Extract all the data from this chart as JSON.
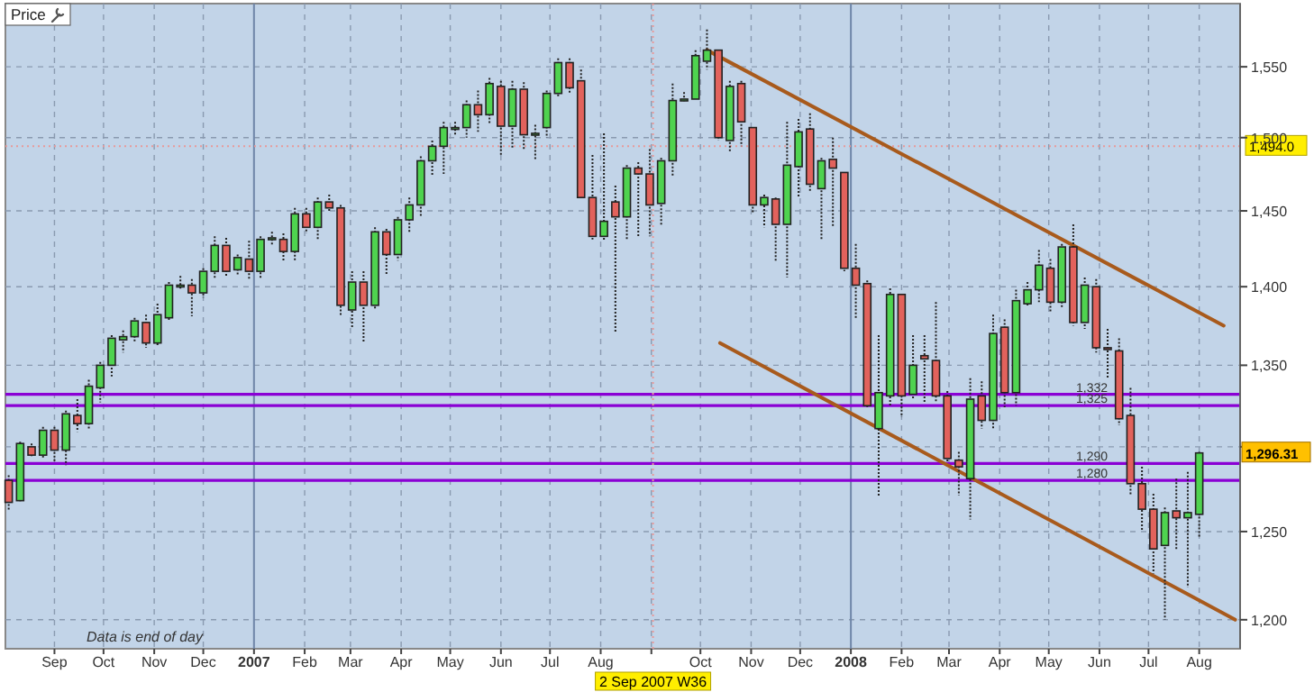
{
  "chart_data": {
    "type": "candlestick",
    "ylabel": "Price",
    "log": true,
    "grid": true,
    "ylim": [
      1184,
      1596
    ],
    "yticks": [
      {
        "value": 1200,
        "label": "1,200"
      },
      {
        "value": 1250,
        "label": "1,250"
      },
      {
        "value": 1300,
        "label": null
      },
      {
        "value": 1350,
        "label": "1,350"
      },
      {
        "value": 1400,
        "label": "1,400"
      },
      {
        "value": 1450,
        "label": "1,450"
      },
      {
        "value": 1500,
        "label": "1,500"
      },
      {
        "value": 1550,
        "label": "1,550"
      }
    ],
    "xlim": [
      "2006-08-02",
      "2008-08-26"
    ],
    "xticks": [
      {
        "value": "2006-09-01",
        "label": "Sep"
      },
      {
        "value": "2006-10-01",
        "label": "Oct"
      },
      {
        "value": "2006-11-01",
        "label": "Nov"
      },
      {
        "value": "2006-12-01",
        "label": "Dec"
      },
      {
        "value": "2007-01-01",
        "label": "2007"
      },
      {
        "value": "2007-02-01",
        "label": "Feb"
      },
      {
        "value": "2007-03-01",
        "label": "Mar"
      },
      {
        "value": "2007-04-01",
        "label": "Apr"
      },
      {
        "value": "2007-05-01",
        "label": "May"
      },
      {
        "value": "2007-06-01",
        "label": "Jun"
      },
      {
        "value": "2007-07-01",
        "label": "Jul"
      },
      {
        "value": "2007-08-01",
        "label": "Aug"
      },
      {
        "value": "2007-09-01",
        "label": null
      },
      {
        "value": "2007-10-01",
        "label": "Oct"
      },
      {
        "value": "2007-11-01",
        "label": "Nov"
      },
      {
        "value": "2007-12-01",
        "label": "Dec"
      },
      {
        "value": "2008-01-01",
        "label": "2008"
      },
      {
        "value": "2008-02-01",
        "label": "Feb"
      },
      {
        "value": "2008-03-01",
        "label": "Mar"
      },
      {
        "value": "2008-04-01",
        "label": "Apr"
      },
      {
        "value": "2008-05-01",
        "label": "May"
      },
      {
        "value": "2008-06-01",
        "label": "Jun"
      },
      {
        "value": "2008-07-01",
        "label": "Jul"
      },
      {
        "value": "2008-08-01",
        "label": "Aug"
      }
    ],
    "x": [
      "2006-08-04",
      "2006-08-11",
      "2006-08-18",
      "2006-08-25",
      "2006-09-01",
      "2006-09-08",
      "2006-09-15",
      "2006-09-22",
      "2006-09-29",
      "2006-10-06",
      "2006-10-13",
      "2006-10-20",
      "2006-10-27",
      "2006-11-03",
      "2006-11-10",
      "2006-11-17",
      "2006-11-24",
      "2006-12-01",
      "2006-12-08",
      "2006-12-15",
      "2006-12-22",
      "2006-12-29",
      "2007-01-05",
      "2007-01-12",
      "2007-01-19",
      "2007-01-26",
      "2007-02-02",
      "2007-02-09",
      "2007-02-16",
      "2007-02-23",
      "2007-03-02",
      "2007-03-09",
      "2007-03-16",
      "2007-03-23",
      "2007-03-30",
      "2007-04-06",
      "2007-04-13",
      "2007-04-20",
      "2007-04-27",
      "2007-05-04",
      "2007-05-11",
      "2007-05-18",
      "2007-05-25",
      "2007-06-01",
      "2007-06-08",
      "2007-06-15",
      "2007-06-22",
      "2007-06-29",
      "2007-07-06",
      "2007-07-13",
      "2007-07-20",
      "2007-07-27",
      "2007-08-03",
      "2007-08-10",
      "2007-08-17",
      "2007-08-24",
      "2007-08-31",
      "2007-09-07",
      "2007-09-14",
      "2007-09-21",
      "2007-09-28",
      "2007-10-05",
      "2007-10-12",
      "2007-10-19",
      "2007-10-26",
      "2007-11-02",
      "2007-11-09",
      "2007-11-16",
      "2007-11-23",
      "2007-11-30",
      "2007-12-07",
      "2007-12-14",
      "2007-12-21",
      "2007-12-28",
      "2008-01-04",
      "2008-01-11",
      "2008-01-18",
      "2008-01-25",
      "2008-02-01",
      "2008-02-08",
      "2008-02-15",
      "2008-02-22",
      "2008-02-29",
      "2008-03-07",
      "2008-03-14",
      "2008-03-21",
      "2008-03-28",
      "2008-04-04",
      "2008-04-11",
      "2008-04-18",
      "2008-04-25",
      "2008-05-02",
      "2008-05-09",
      "2008-05-16",
      "2008-05-23",
      "2008-05-30",
      "2008-06-06",
      "2008-06-13",
      "2008-06-20",
      "2008-06-27",
      "2008-07-04",
      "2008-07-11",
      "2008-07-18",
      "2008-07-25",
      "2008-08-01"
    ],
    "ohlc": [
      [
        1280,
        1283,
        1262,
        1267
      ],
      [
        1268,
        1303,
        1267,
        1302
      ],
      [
        1300,
        1302,
        1294,
        1295
      ],
      [
        1295,
        1312,
        1293,
        1310
      ],
      [
        1310,
        1312,
        1291,
        1298
      ],
      [
        1298,
        1322,
        1289,
        1320
      ],
      [
        1319,
        1329,
        1309,
        1314
      ],
      [
        1314,
        1341,
        1311,
        1337
      ],
      [
        1336,
        1352,
        1327,
        1350
      ],
      [
        1350,
        1369,
        1343,
        1367
      ],
      [
        1366,
        1372,
        1358,
        1368
      ],
      [
        1368,
        1380,
        1364,
        1378
      ],
      [
        1377,
        1382,
        1361,
        1364
      ],
      [
        1364,
        1389,
        1362,
        1382
      ],
      [
        1380,
        1403,
        1378,
        1401
      ],
      [
        1400,
        1407,
        1398,
        1401
      ],
      [
        1401,
        1405,
        1381,
        1396
      ],
      [
        1396,
        1412,
        1393,
        1410
      ],
      [
        1410,
        1433,
        1405,
        1427
      ],
      [
        1427,
        1432,
        1407,
        1410
      ],
      [
        1411,
        1421,
        1408,
        1419
      ],
      [
        1418,
        1430,
        1405,
        1410
      ],
      [
        1410,
        1433,
        1405,
        1431
      ],
      [
        1431,
        1436,
        1427,
        1432
      ],
      [
        1431,
        1435,
        1417,
        1423
      ],
      [
        1423,
        1452,
        1417,
        1448
      ],
      [
        1448,
        1452,
        1435,
        1439
      ],
      [
        1439,
        1459,
        1431,
        1456
      ],
      [
        1456,
        1461,
        1450,
        1452
      ],
      [
        1452,
        1454,
        1381,
        1388
      ],
      [
        1385,
        1410,
        1374,
        1403
      ],
      [
        1403,
        1410,
        1364,
        1388
      ],
      [
        1388,
        1439,
        1386,
        1436
      ],
      [
        1436,
        1438,
        1408,
        1421
      ],
      [
        1421,
        1446,
        1417,
        1444
      ],
      [
        1444,
        1459,
        1435,
        1454
      ],
      [
        1454,
        1487,
        1446,
        1484
      ],
      [
        1484,
        1498,
        1474,
        1494
      ],
      [
        1494,
        1511,
        1475,
        1507
      ],
      [
        1507,
        1511,
        1502,
        1507
      ],
      [
        1507,
        1526,
        1500,
        1523
      ],
      [
        1523,
        1533,
        1504,
        1516
      ],
      [
        1516,
        1542,
        1509,
        1538
      ],
      [
        1536,
        1540,
        1488,
        1508
      ],
      [
        1508,
        1540,
        1493,
        1534
      ],
      [
        1534,
        1539,
        1492,
        1502
      ],
      [
        1503,
        1509,
        1484,
        1503
      ],
      [
        1507,
        1533,
        1500,
        1531
      ],
      [
        1531,
        1556,
        1529,
        1553
      ],
      [
        1553,
        1556,
        1531,
        1535
      ],
      [
        1540,
        1548,
        1459,
        1459
      ],
      [
        1459,
        1488,
        1431,
        1433
      ],
      [
        1433,
        1503,
        1430,
        1443
      ],
      [
        1456,
        1467,
        1371,
        1446
      ],
      [
        1446,
        1481,
        1431,
        1479
      ],
      [
        1479,
        1483,
        1433,
        1475
      ],
      [
        1475,
        1492,
        1433,
        1454
      ],
      [
        1455,
        1486,
        1440,
        1484
      ],
      [
        1484,
        1538,
        1473,
        1526
      ],
      [
        1527,
        1532,
        1525,
        1527
      ],
      [
        1527,
        1562,
        1526,
        1558
      ],
      [
        1554,
        1577,
        1548,
        1562
      ],
      [
        1562,
        1562,
        1498,
        1500
      ],
      [
        1498,
        1540,
        1490,
        1536
      ],
      [
        1538,
        1540,
        1494,
        1511
      ],
      [
        1507,
        1507,
        1449,
        1454
      ],
      [
        1454,
        1461,
        1439,
        1459
      ],
      [
        1458,
        1459,
        1416,
        1441
      ],
      [
        1441,
        1511,
        1406,
        1481
      ],
      [
        1480,
        1513,
        1459,
        1504
      ],
      [
        1506,
        1517,
        1463,
        1468
      ],
      [
        1465,
        1486,
        1431,
        1484
      ],
      [
        1485,
        1500,
        1439,
        1479
      ],
      [
        1476,
        1476,
        1410,
        1412
      ],
      [
        1412,
        1428,
        1380,
        1401
      ],
      [
        1402,
        1404,
        1324,
        1325
      ],
      [
        1311,
        1369,
        1271,
        1333
      ],
      [
        1331,
        1399,
        1324,
        1395
      ],
      [
        1395,
        1395,
        1318,
        1331
      ],
      [
        1332,
        1369,
        1329,
        1350
      ],
      [
        1356,
        1369,
        1327,
        1354
      ],
      [
        1353,
        1390,
        1327,
        1331
      ],
      [
        1331,
        1334,
        1291,
        1293
      ],
      [
        1292,
        1297,
        1271,
        1288
      ],
      [
        1281,
        1342,
        1257,
        1329
      ],
      [
        1331,
        1340,
        1311,
        1316
      ],
      [
        1316,
        1382,
        1311,
        1370
      ],
      [
        1374,
        1379,
        1324,
        1333
      ],
      [
        1333,
        1398,
        1325,
        1391
      ],
      [
        1389,
        1403,
        1387,
        1398
      ],
      [
        1398,
        1424,
        1390,
        1414
      ],
      [
        1412,
        1418,
        1384,
        1390
      ],
      [
        1390,
        1428,
        1386,
        1426
      ],
      [
        1426,
        1441,
        1375,
        1377
      ],
      [
        1377,
        1406,
        1373,
        1401
      ],
      [
        1400,
        1405,
        1358,
        1361
      ],
      [
        1361,
        1373,
        1342,
        1360
      ],
      [
        1359,
        1367,
        1313,
        1317
      ],
      [
        1319,
        1336,
        1271,
        1278
      ],
      [
        1278,
        1288,
        1251,
        1263
      ],
      [
        1263,
        1272,
        1226,
        1240
      ],
      [
        1242,
        1264,
        1200,
        1261
      ],
      [
        1262,
        1281,
        1239,
        1258
      ],
      [
        1258,
        1285,
        1218,
        1261
      ],
      [
        1260,
        1297,
        1247,
        1296.31
      ]
    ],
    "series": [
      {
        "type": "line",
        "color": "#a85a1c",
        "x": [
          "2007-10-05",
          "2008-08-16"
        ],
        "values": [
          1562,
          1375
        ]
      },
      {
        "type": "line",
        "color": "#a85a1c",
        "x": [
          "2007-10-13",
          "2008-08-23"
        ],
        "values": [
          1364,
          1200
        ]
      }
    ],
    "ref_lines": [
      {
        "axis": "y",
        "value": 1332,
        "label": "1,332",
        "color": "#8a00d4",
        "line_style": "solid"
      },
      {
        "axis": "y",
        "value": 1325,
        "label": "1,325",
        "color": "#8a00d4",
        "line_style": "solid"
      },
      {
        "axis": "y",
        "value": 1290,
        "label": "1,290",
        "color": "#8a00d4",
        "line_style": "solid"
      },
      {
        "axis": "y",
        "value": 1280,
        "label": "1,280",
        "color": "#8a00d4",
        "line_style": "solid"
      },
      {
        "axis": "y",
        "value": 1494,
        "label": "1,494.0",
        "color": "#e89a9a",
        "line_style": "dotted"
      },
      {
        "axis": "x",
        "value": "2007-09-02",
        "label": "2 Sep 2007 W36",
        "color": "#e89a9a",
        "line_style": "dotted"
      }
    ],
    "annotations": [
      "Data is end of day",
      "1,296.31"
    ]
  }
}
